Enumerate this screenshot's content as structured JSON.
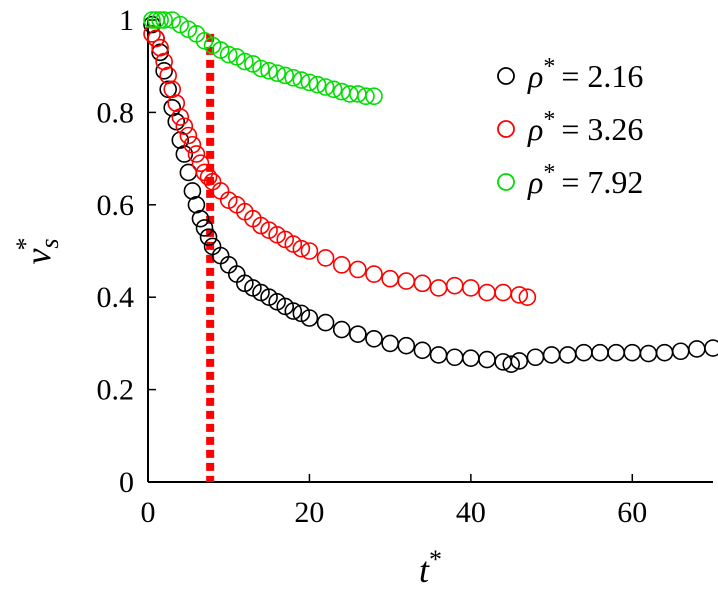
{
  "chart_data": {
    "type": "scatter",
    "xlabel_base": "t",
    "xlabel_sup": "*",
    "ylabel_base": "v",
    "ylabel_sub": "s",
    "ylabel_sup": "*",
    "xlim": [
      0,
      70
    ],
    "ylim": [
      0,
      1
    ],
    "xticks": [
      0,
      20,
      40,
      60
    ],
    "yticks": [
      0,
      0.2,
      0.4,
      0.6,
      0.8,
      1
    ],
    "ytick_labels": [
      "0",
      "0.2",
      "0.4",
      "0.6",
      "0.8",
      "1"
    ],
    "xtick_labels": [
      "0",
      "20",
      "40",
      "60"
    ],
    "legend_position": "top-right",
    "vline": {
      "x": 7.7,
      "color": "#ff0000",
      "style": "dotted"
    },
    "series": [
      {
        "symbol": "ρ",
        "sup": "*",
        "value_text": "= 2.16",
        "color": "#000000",
        "x": [
          0.5,
          1.0,
          1.5,
          2.0,
          2.5,
          3.0,
          3.5,
          4.0,
          4.5,
          5.0,
          5.5,
          6.0,
          6.5,
          7.0,
          7.5,
          8.0,
          9,
          10,
          11,
          12,
          13,
          14,
          15,
          16,
          17,
          18,
          19,
          20,
          22,
          24,
          26,
          28,
          30,
          32,
          34,
          36,
          38,
          40,
          42,
          44,
          45,
          46,
          48,
          50,
          52,
          54,
          56,
          58,
          60,
          62,
          64,
          66,
          68,
          70
        ],
        "y": [
          0.99,
          0.96,
          0.93,
          0.89,
          0.85,
          0.81,
          0.78,
          0.74,
          0.71,
          0.67,
          0.63,
          0.6,
          0.57,
          0.55,
          0.53,
          0.51,
          0.49,
          0.47,
          0.45,
          0.43,
          0.42,
          0.41,
          0.4,
          0.39,
          0.38,
          0.37,
          0.365,
          0.355,
          0.345,
          0.33,
          0.32,
          0.31,
          0.3,
          0.295,
          0.285,
          0.275,
          0.27,
          0.268,
          0.265,
          0.26,
          0.255,
          0.262,
          0.27,
          0.275,
          0.275,
          0.28,
          0.28,
          0.28,
          0.28,
          0.278,
          0.28,
          0.283,
          0.288,
          0.29
        ]
      },
      {
        "symbol": "ρ",
        "sup": "*",
        "value_text": "= 3.26",
        "color": "#ff0000",
        "x": [
          0.5,
          1.0,
          1.5,
          2.0,
          2.5,
          3.0,
          3.5,
          4.0,
          4.5,
          5.0,
          5.5,
          6.0,
          6.5,
          7.0,
          7.5,
          8.0,
          9,
          10,
          11,
          12,
          13,
          14,
          15,
          16,
          17,
          18,
          19,
          20,
          22,
          24,
          26,
          28,
          30,
          32,
          34,
          36,
          38,
          40,
          42,
          44,
          46,
          47
        ],
        "y": [
          0.97,
          0.96,
          0.94,
          0.91,
          0.88,
          0.85,
          0.82,
          0.79,
          0.77,
          0.75,
          0.73,
          0.71,
          0.69,
          0.67,
          0.66,
          0.65,
          0.63,
          0.61,
          0.6,
          0.585,
          0.57,
          0.555,
          0.545,
          0.535,
          0.525,
          0.515,
          0.505,
          0.5,
          0.485,
          0.47,
          0.46,
          0.45,
          0.44,
          0.435,
          0.43,
          0.42,
          0.425,
          0.42,
          0.41,
          0.41,
          0.405,
          0.4
        ]
      },
      {
        "symbol": "ρ",
        "sup": "*",
        "value_text": "= 7.92",
        "color": "#00dd00",
        "x": [
          0.5,
          1.0,
          1.5,
          2.0,
          3.0,
          4.0,
          5.0,
          6.0,
          7.0,
          8.0,
          9,
          10,
          11,
          12,
          13,
          14,
          15,
          16,
          17,
          18,
          19,
          20,
          21,
          22,
          23,
          24,
          25,
          26,
          27,
          28
        ],
        "y": [
          1.0,
          1.0,
          1.0,
          1.0,
          1.0,
          0.99,
          0.98,
          0.97,
          0.955,
          0.945,
          0.935,
          0.925,
          0.92,
          0.91,
          0.905,
          0.895,
          0.89,
          0.885,
          0.88,
          0.875,
          0.87,
          0.865,
          0.86,
          0.855,
          0.85,
          0.845,
          0.84,
          0.84,
          0.835,
          0.835
        ]
      }
    ]
  }
}
